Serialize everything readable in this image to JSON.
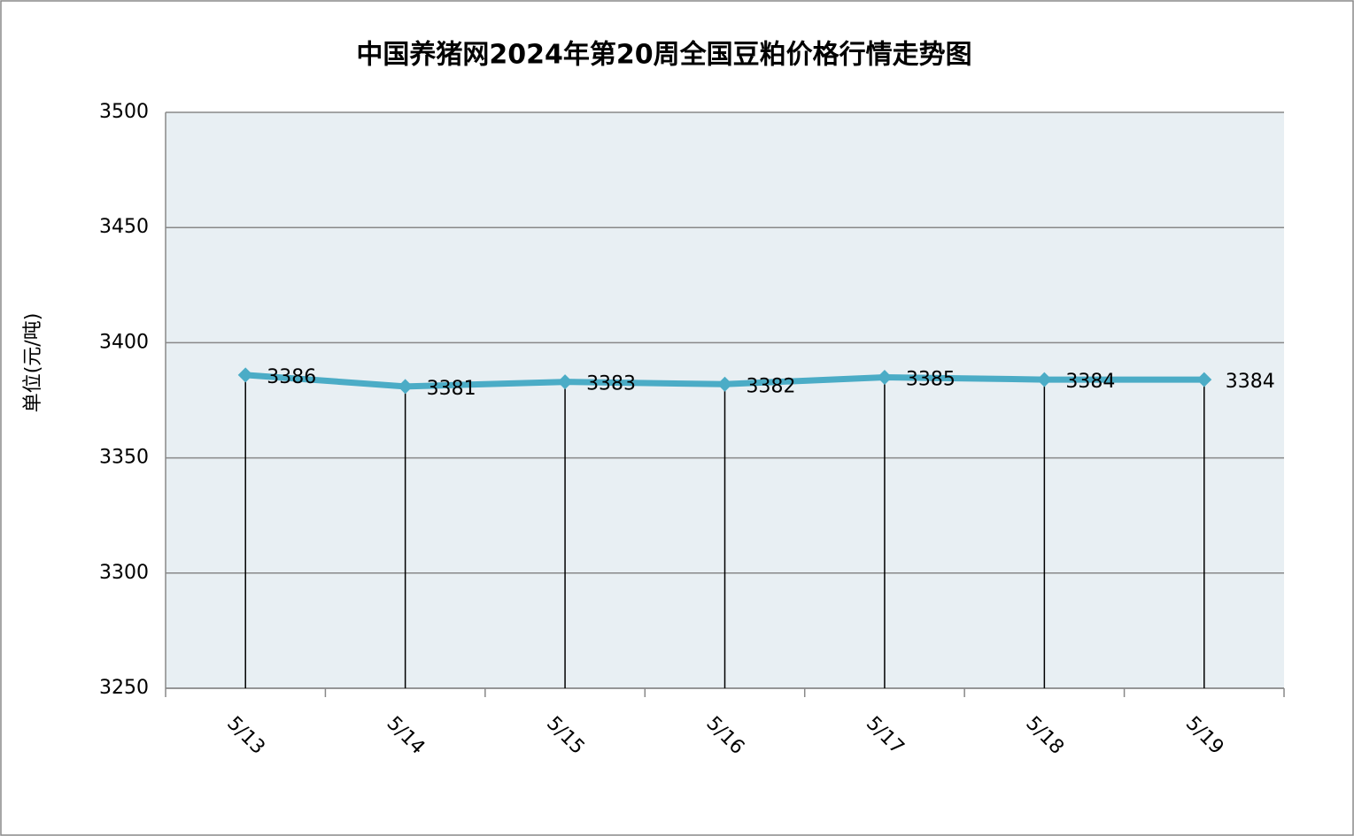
{
  "chart_data": {
    "type": "line",
    "title": "中国养猪网2024年第20周全国豆粕价格行情走势图",
    "y_label": "单位(元/吨)",
    "categories": [
      "5/13",
      "5/14",
      "5/15",
      "5/16",
      "5/17",
      "5/18",
      "5/19"
    ],
    "values": [
      3386,
      3381,
      3383,
      3382,
      3385,
      3384,
      3384
    ],
    "color": "#4bacc6",
    "ylim": [
      3250,
      3500
    ],
    "yticks": [
      3250,
      3300,
      3350,
      3400,
      3450,
      3500
    ],
    "grid": true,
    "drop_lines": true
  }
}
